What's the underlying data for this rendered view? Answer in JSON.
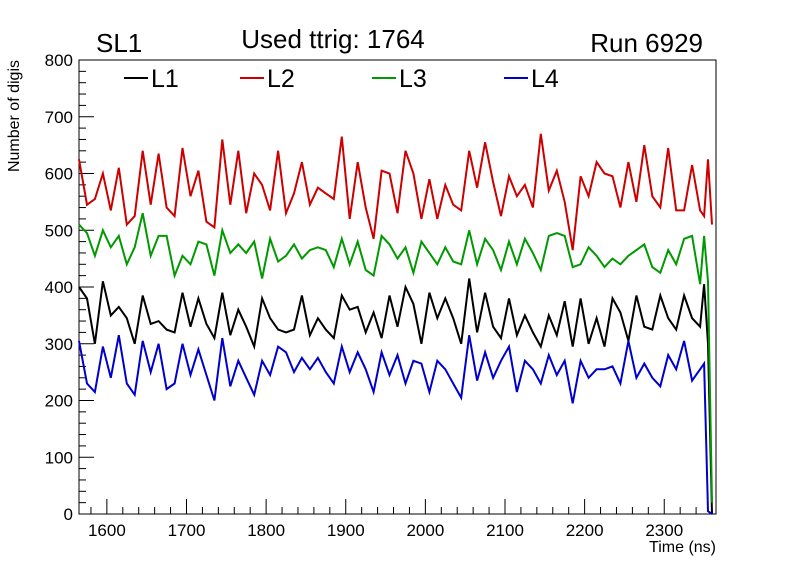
{
  "header": {
    "left_label": "SL1",
    "title": "Used ttrig: 1764",
    "right_label": "Run 6929"
  },
  "chart_data": {
    "type": "line",
    "title": "Used ttrig: 1764",
    "xlabel": "Time (ns)",
    "ylabel": "Number of digis",
    "xlim": [
      1565,
      2365
    ],
    "ylim": [
      0,
      800
    ],
    "x_ticks": [
      1600,
      1700,
      1800,
      1900,
      2000,
      2100,
      2200,
      2300
    ],
    "y_ticks": [
      0,
      100,
      200,
      300,
      400,
      500,
      600,
      700,
      800
    ],
    "grid": false,
    "legend_position": "top",
    "x": [
      1565,
      1575,
      1585,
      1595,
      1605,
      1615,
      1625,
      1635,
      1645,
      1655,
      1665,
      1675,
      1685,
      1695,
      1705,
      1715,
      1725,
      1735,
      1745,
      1755,
      1765,
      1775,
      1785,
      1795,
      1805,
      1815,
      1825,
      1835,
      1845,
      1855,
      1865,
      1875,
      1885,
      1895,
      1905,
      1915,
      1925,
      1935,
      1945,
      1955,
      1965,
      1975,
      1985,
      1995,
      2005,
      2015,
      2025,
      2035,
      2045,
      2055,
      2065,
      2075,
      2085,
      2095,
      2105,
      2115,
      2125,
      2135,
      2145,
      2155,
      2165,
      2175,
      2185,
      2195,
      2205,
      2215,
      2225,
      2235,
      2245,
      2255,
      2265,
      2275,
      2285,
      2295,
      2305,
      2315,
      2325,
      2335,
      2345,
      2350,
      2355,
      2360
    ],
    "series": [
      {
        "name": "L1",
        "color": "#000000",
        "values": [
          400,
          380,
          300,
          410,
          350,
          365,
          345,
          300,
          385,
          335,
          340,
          325,
          320,
          390,
          330,
          380,
          335,
          310,
          390,
          315,
          360,
          330,
          295,
          380,
          345,
          325,
          320,
          325,
          385,
          315,
          345,
          325,
          310,
          385,
          360,
          365,
          320,
          355,
          310,
          385,
          330,
          400,
          370,
          300,
          390,
          345,
          380,
          345,
          300,
          415,
          320,
          390,
          330,
          310,
          380,
          315,
          350,
          320,
          295,
          350,
          315,
          375,
          295,
          380,
          300,
          345,
          295,
          380,
          355,
          305,
          385,
          330,
          325,
          385,
          345,
          325,
          385,
          345,
          330,
          405,
          300,
          0
        ]
      },
      {
        "name": "L2",
        "color": "#cc0000",
        "values": [
          625,
          545,
          555,
          600,
          535,
          610,
          510,
          525,
          640,
          545,
          635,
          540,
          525,
          645,
          560,
          605,
          515,
          505,
          660,
          545,
          640,
          530,
          600,
          580,
          535,
          640,
          530,
          565,
          620,
          545,
          575,
          565,
          555,
          665,
          520,
          620,
          540,
          485,
          605,
          600,
          530,
          640,
          600,
          520,
          590,
          520,
          580,
          545,
          535,
          640,
          575,
          655,
          585,
          525,
          595,
          560,
          580,
          540,
          670,
          570,
          605,
          550,
          465,
          595,
          560,
          620,
          600,
          595,
          540,
          620,
          550,
          650,
          560,
          540,
          645,
          535,
          535,
          615,
          535,
          525,
          625,
          510
        ]
      },
      {
        "name": "L3",
        "color": "#009900",
        "values": [
          510,
          495,
          455,
          500,
          470,
          490,
          440,
          470,
          530,
          455,
          490,
          490,
          420,
          455,
          440,
          480,
          475,
          420,
          500,
          460,
          475,
          460,
          480,
          415,
          485,
          445,
          455,
          475,
          450,
          465,
          470,
          465,
          435,
          485,
          440,
          480,
          430,
          420,
          490,
          475,
          450,
          470,
          425,
          480,
          460,
          440,
          470,
          445,
          440,
          500,
          440,
          485,
          465,
          430,
          480,
          440,
          485,
          460,
          430,
          490,
          495,
          490,
          435,
          440,
          470,
          455,
          435,
          450,
          440,
          455,
          465,
          475,
          435,
          425,
          465,
          440,
          485,
          490,
          405,
          490,
          410,
          20
        ]
      },
      {
        "name": "L4",
        "color": "#0000cc",
        "values": [
          305,
          230,
          215,
          295,
          240,
          315,
          230,
          210,
          305,
          250,
          300,
          220,
          230,
          300,
          245,
          290,
          245,
          200,
          310,
          225,
          270,
          240,
          210,
          270,
          245,
          295,
          285,
          250,
          275,
          255,
          275,
          250,
          230,
          295,
          250,
          285,
          255,
          215,
          285,
          245,
          280,
          230,
          270,
          265,
          215,
          270,
          255,
          230,
          205,
          315,
          235,
          285,
          240,
          270,
          295,
          215,
          270,
          255,
          230,
          280,
          245,
          270,
          195,
          270,
          240,
          255,
          255,
          260,
          230,
          305,
          240,
          265,
          240,
          225,
          280,
          255,
          305,
          235,
          255,
          265,
          5,
          0
        ]
      }
    ]
  }
}
